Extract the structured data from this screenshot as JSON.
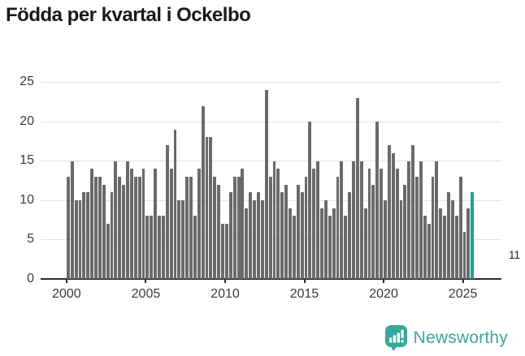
{
  "title": "Födda per kvartal i Ockelbo",
  "chart_data": {
    "type": "bar",
    "title": "Födda per kvartal i Ockelbo",
    "xlabel": "",
    "ylabel": "",
    "ylim": [
      0,
      25
    ],
    "yticks": [
      0,
      5,
      10,
      15,
      20,
      25
    ],
    "xticks": [
      2000,
      2005,
      2010,
      2015,
      2020,
      2025
    ],
    "grid": "horizontal",
    "legend": "none",
    "bar_color": "#6a6a6a",
    "highlight_color": "#16a49c",
    "series": [
      {
        "year": 2000,
        "values": [
          13,
          15,
          10,
          10
        ]
      },
      {
        "year": 2001,
        "values": [
          11,
          11,
          14,
          13
        ]
      },
      {
        "year": 2002,
        "values": [
          13,
          12,
          7,
          11
        ]
      },
      {
        "year": 2003,
        "values": [
          15,
          13,
          12,
          15
        ]
      },
      {
        "year": 2004,
        "values": [
          14,
          13,
          13,
          14
        ]
      },
      {
        "year": 2005,
        "values": [
          8,
          8,
          14,
          8
        ]
      },
      {
        "year": 2006,
        "values": [
          8,
          17,
          14,
          19
        ]
      },
      {
        "year": 2007,
        "values": [
          10,
          10,
          13,
          13
        ]
      },
      {
        "year": 2008,
        "values": [
          8,
          14,
          22,
          18
        ]
      },
      {
        "year": 2009,
        "values": [
          18,
          13,
          12,
          7
        ]
      },
      {
        "year": 2010,
        "values": [
          7,
          11,
          13,
          13
        ]
      },
      {
        "year": 2011,
        "values": [
          14,
          9,
          11,
          10
        ]
      },
      {
        "year": 2012,
        "values": [
          11,
          10,
          24,
          13
        ]
      },
      {
        "year": 2013,
        "values": [
          15,
          14,
          11,
          12
        ]
      },
      {
        "year": 2014,
        "values": [
          9,
          8,
          12,
          11
        ]
      },
      {
        "year": 2015,
        "values": [
          13,
          20,
          14,
          15
        ]
      },
      {
        "year": 2016,
        "values": [
          9,
          10,
          8,
          9
        ]
      },
      {
        "year": 2017,
        "values": [
          13,
          15,
          8,
          11
        ]
      },
      {
        "year": 2018,
        "values": [
          15,
          23,
          15,
          9
        ]
      },
      {
        "year": 2019,
        "values": [
          14,
          12,
          20,
          14
        ]
      },
      {
        "year": 2020,
        "values": [
          10,
          17,
          16,
          14
        ]
      },
      {
        "year": 2021,
        "values": [
          10,
          12,
          15,
          17
        ]
      },
      {
        "year": 2022,
        "values": [
          13,
          15,
          8,
          7
        ]
      },
      {
        "year": 2023,
        "values": [
          13,
          15,
          9,
          8
        ]
      },
      {
        "year": 2024,
        "values": [
          11,
          10,
          8,
          13
        ]
      },
      {
        "year": 2025,
        "values": [
          6,
          9,
          11
        ]
      }
    ],
    "highlight": {
      "year": 2025,
      "quarter": 3,
      "value": 11
    },
    "annotation": "11"
  },
  "logo": {
    "text": "Newsworthy",
    "color": "#3aa79c"
  }
}
